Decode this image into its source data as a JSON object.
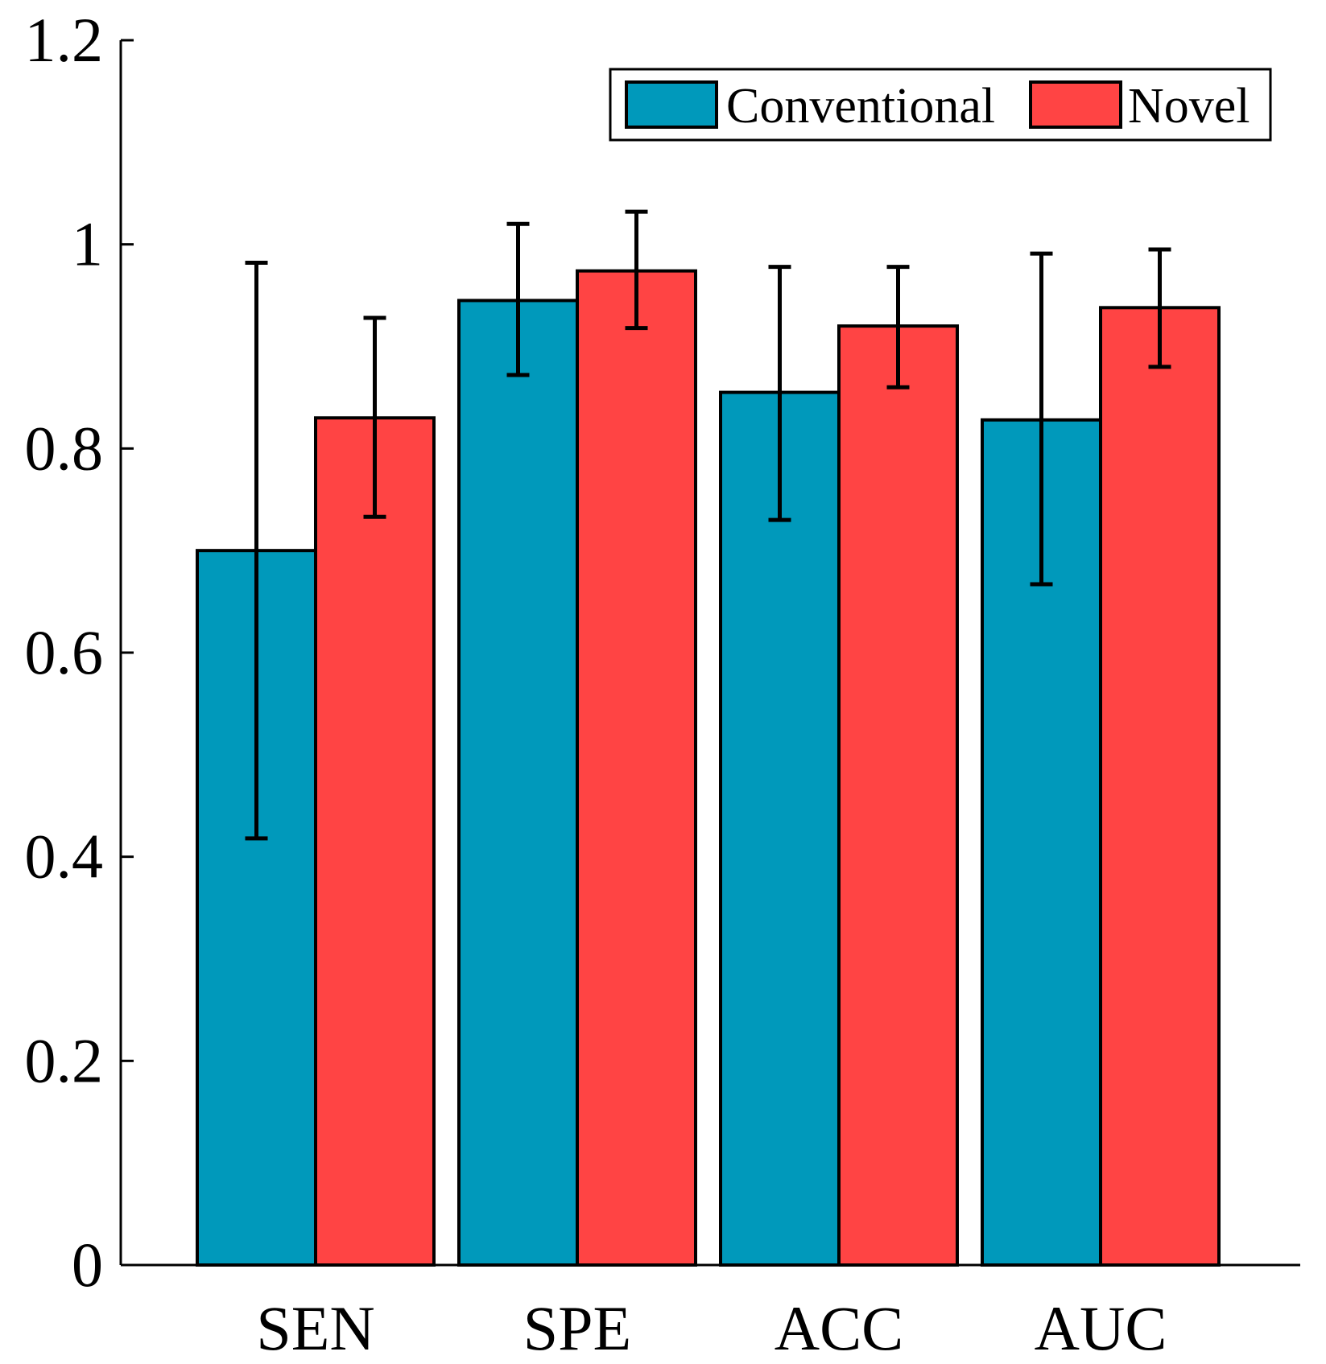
{
  "chart_data": {
    "type": "bar",
    "title": "",
    "xlabel": "",
    "ylabel": "",
    "categories": [
      "SEN",
      "SPE",
      "ACC",
      "AUC"
    ],
    "ylim": [
      0,
      1.2
    ],
    "yticks": [
      0,
      0.2,
      0.4,
      0.6,
      0.8,
      1,
      1.2
    ],
    "ytick_labels": [
      "0",
      "0.2",
      "0.4",
      "0.6",
      "0.8",
      "1",
      "1.2"
    ],
    "grid": false,
    "legend_position": "top-right",
    "series": [
      {
        "name": "Conventional",
        "color": "#0099BB",
        "values": [
          0.7,
          0.945,
          0.855,
          0.828
        ],
        "error_low": [
          0.418,
          0.872,
          0.73,
          0.667
        ],
        "error_high": [
          0.982,
          1.02,
          0.978,
          0.991
        ]
      },
      {
        "name": "Novel",
        "color": "#FF4444",
        "values": [
          0.83,
          0.974,
          0.92,
          0.938
        ],
        "error_low": [
          0.733,
          0.918,
          0.86,
          0.88
        ],
        "error_high": [
          0.928,
          1.032,
          0.978,
          0.995
        ]
      }
    ]
  }
}
